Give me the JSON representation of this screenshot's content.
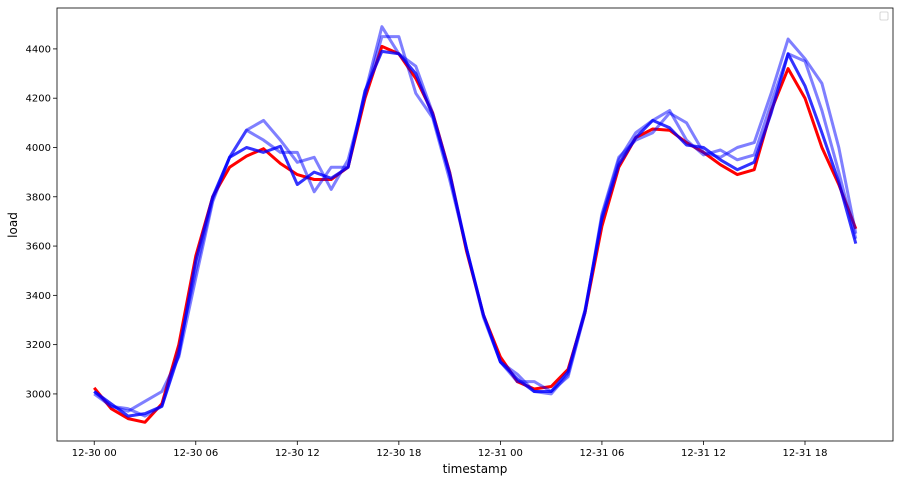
{
  "chart_data": {
    "type": "line",
    "title": "",
    "xlabel": "timestamp",
    "ylabel": "load",
    "x_start": "12-30 00",
    "x_step": "1 hour",
    "x_ticks": [
      "12-30 00",
      "12-30 06",
      "12-30 12",
      "12-30 18",
      "12-31 00",
      "12-31 06",
      "12-31 12",
      "12-31 18"
    ],
    "x_tick_hours": [
      0,
      6,
      12,
      18,
      24,
      30,
      36,
      42
    ],
    "y_ticks": [
      3000,
      3200,
      3400,
      3600,
      3800,
      4000,
      4200,
      4400
    ],
    "ylim": [
      2809,
      4566
    ],
    "xlim_hours": [
      -2.2,
      47.2
    ],
    "grid": false,
    "legend": {
      "placement": "top-right",
      "entries": []
    },
    "series": [
      {
        "color": "#ff0000",
        "opacity": 1,
        "values": [
          3025,
          2940,
          2900,
          2885,
          2960,
          3200,
          3560,
          3800,
          3920,
          3965,
          3995,
          3935,
          3890,
          3870,
          3870,
          3920,
          4200,
          4410,
          4380,
          4280,
          4140,
          3900,
          3580,
          3320,
          3150,
          3050,
          3020,
          3030,
          3100,
          3330,
          3680,
          3920,
          4040,
          4075,
          4070,
          4020,
          3980,
          3930,
          3890,
          3910,
          4150,
          4320,
          4200,
          4000,
          3850,
          3670
        ]
      },
      {
        "color": "#0000ff",
        "opacity": 0.5,
        "values": [
          3000,
          2950,
          2930,
          2970,
          3010,
          3150,
          3470,
          3780,
          3960,
          4070,
          4110,
          4030,
          3940,
          3960,
          3830,
          3950,
          4210,
          4450,
          4450,
          4220,
          4120,
          3870,
          3590,
          3310,
          3130,
          3050,
          3050,
          3010,
          3070,
          3330,
          3730,
          3960,
          4030,
          4060,
          4140,
          4100,
          3980,
          3960,
          4000,
          4020,
          4220,
          4440,
          4360,
          4260,
          4000,
          3650
        ]
      },
      {
        "color": "#0000ff",
        "opacity": 0.5,
        "values": [
          3010,
          2950,
          2940,
          2910,
          2950,
          3180,
          3500,
          3790,
          3960,
          4070,
          4030,
          3980,
          3980,
          3820,
          3920,
          3920,
          4220,
          4490,
          4380,
          4330,
          4140,
          3900,
          3590,
          3320,
          3130,
          3080,
          3010,
          3000,
          3080,
          3330,
          3720,
          3950,
          4060,
          4110,
          4150,
          4030,
          3970,
          3990,
          3950,
          3970,
          4180,
          4380,
          4350,
          4150,
          3900,
          3630
        ]
      },
      {
        "color": "#0000ff",
        "opacity": 0.8,
        "values": [
          3010,
          2960,
          2910,
          2920,
          2950,
          3160,
          3540,
          3800,
          3960,
          4000,
          3980,
          4005,
          3850,
          3900,
          3875,
          3920,
          4230,
          4390,
          4380,
          4300,
          4130,
          3890,
          3590,
          3320,
          3130,
          3060,
          3010,
          3010,
          3090,
          3340,
          3710,
          3930,
          4040,
          4110,
          4080,
          4010,
          4000,
          3950,
          3910,
          3940,
          4140,
          4380,
          4250,
          4060,
          3860,
          3610
        ]
      }
    ]
  }
}
